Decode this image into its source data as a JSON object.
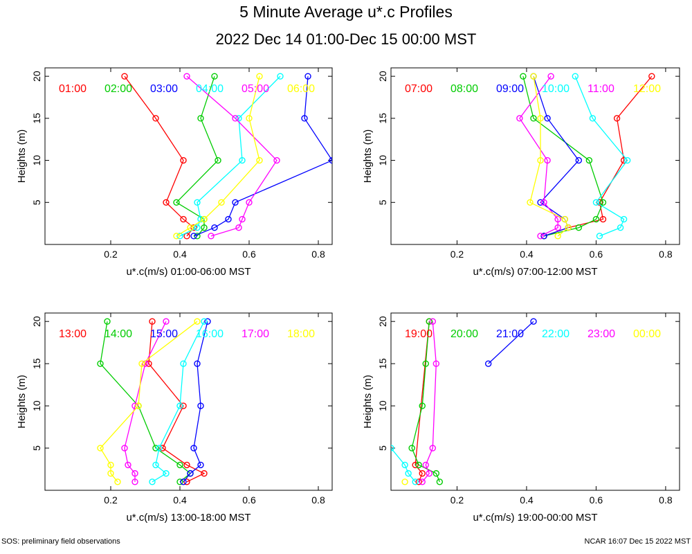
{
  "title": "5 Minute Average u*.c Profiles",
  "subtitle": "2022 Dec 14 01:00-Dec 15 00:00 MST",
  "footer": {
    "left": "SOS: preliminary field observations",
    "right": "NCAR 16:07 Dec 15 2022 MST"
  },
  "colors": {
    "red": "#ff0000",
    "green": "#00cc00",
    "blue": "#0000ff",
    "cyan": "#00ffff",
    "magenta": "#ff00ff",
    "yellow": "#ffff00"
  },
  "chart_data": [
    {
      "type": "line",
      "xlabel": "u*.c(m/s) 01:00-06:00 MST",
      "ylabel": "Heights (m)",
      "xlim": [
        0.01,
        0.84
      ],
      "ylim": [
        0,
        21
      ],
      "xticks": [
        0.2,
        0.4,
        0.6,
        0.8
      ],
      "yticks": [
        5,
        10,
        15,
        20
      ],
      "legend_placement": "top",
      "series": [
        {
          "name": "01:00",
          "color": "#ff0000",
          "points": [
            [
              0.42,
              1
            ],
            [
              0.44,
              2
            ],
            [
              0.41,
              3
            ],
            [
              0.36,
              5
            ],
            [
              0.41,
              10
            ],
            [
              0.33,
              15
            ],
            [
              0.24,
              20
            ]
          ]
        },
        {
          "name": "02:00",
          "color": "#00cc00",
          "points": [
            [
              0.45,
              1
            ],
            [
              0.47,
              2
            ],
            [
              0.47,
              3
            ],
            [
              0.39,
              5
            ],
            [
              0.51,
              10
            ],
            [
              0.46,
              15
            ],
            [
              0.5,
              20
            ]
          ]
        },
        {
          "name": "03:00",
          "color": "#0000ff",
          "points": [
            [
              0.44,
              1
            ],
            [
              0.5,
              2
            ],
            [
              0.54,
              3
            ],
            [
              0.56,
              5
            ],
            [
              0.84,
              10
            ],
            [
              0.76,
              15
            ],
            [
              0.77,
              20
            ]
          ]
        },
        {
          "name": "04:00",
          "color": "#00ffff",
          "points": [
            [
              0.4,
              1
            ],
            [
              0.45,
              2
            ],
            [
              0.46,
              3
            ],
            [
              0.45,
              5
            ],
            [
              0.58,
              10
            ],
            [
              0.57,
              15
            ],
            [
              0.69,
              20
            ]
          ]
        },
        {
          "name": "05:00",
          "color": "#ff00ff",
          "points": [
            [
              0.49,
              1
            ],
            [
              0.57,
              2
            ],
            [
              0.58,
              3
            ],
            [
              0.6,
              5
            ],
            [
              0.68,
              10
            ],
            [
              0.56,
              15
            ],
            [
              0.42,
              20
            ]
          ]
        },
        {
          "name": "06:00",
          "color": "#ffff00",
          "points": [
            [
              0.39,
              1
            ],
            [
              0.43,
              2
            ],
            [
              0.47,
              3
            ],
            [
              0.52,
              5
            ],
            [
              0.63,
              10
            ],
            [
              0.6,
              15
            ],
            [
              0.63,
              20
            ]
          ]
        }
      ]
    },
    {
      "type": "line",
      "xlabel": "u*.c(m/s) 07:00-12:00 MST",
      "ylabel": "Heights (m)",
      "xlim": [
        0.01,
        0.84
      ],
      "ylim": [
        0,
        21
      ],
      "xticks": [
        0.2,
        0.4,
        0.6,
        0.8
      ],
      "yticks": [
        5,
        10,
        15,
        20
      ],
      "legend_placement": "top",
      "series": [
        {
          "name": "07:00",
          "color": "#ff0000",
          "points": [
            [
              0.45,
              1
            ],
            [
              0.52,
              2
            ],
            [
              0.62,
              3
            ],
            [
              0.61,
              5
            ],
            [
              0.68,
              10
            ],
            [
              0.66,
              15
            ],
            [
              0.76,
              20
            ]
          ]
        },
        {
          "name": "08:00",
          "color": "#00cc00",
          "points": [
            [
              0.45,
              1
            ],
            [
              0.55,
              2
            ],
            [
              0.6,
              3
            ],
            [
              0.62,
              5
            ],
            [
              0.58,
              10
            ],
            [
              0.42,
              15
            ],
            [
              0.39,
              20
            ]
          ]
        },
        {
          "name": "09:00",
          "color": "#0000ff",
          "points": [
            [
              0.45,
              1
            ],
            [
              0.52,
              2
            ],
            [
              0.51,
              3
            ],
            [
              0.44,
              5
            ],
            [
              0.55,
              10
            ],
            [
              0.46,
              15
            ],
            [
              0.42,
              20
            ]
          ]
        },
        {
          "name": "10:00",
          "color": "#00ffff",
          "points": [
            [
              0.61,
              1
            ],
            [
              0.67,
              2
            ],
            [
              0.68,
              3
            ],
            [
              0.6,
              5
            ],
            [
              0.69,
              10
            ],
            [
              0.59,
              15
            ],
            [
              0.54,
              20
            ]
          ]
        },
        {
          "name": "11:00",
          "color": "#ff00ff",
          "points": [
            [
              0.44,
              1
            ],
            [
              0.49,
              2
            ],
            [
              0.49,
              3
            ],
            [
              0.45,
              5
            ],
            [
              0.46,
              10
            ],
            [
              0.38,
              15
            ],
            [
              0.47,
              20
            ]
          ]
        },
        {
          "name": "12:00",
          "color": "#ffff00",
          "points": [
            [
              0.49,
              1
            ],
            [
              0.52,
              2
            ],
            [
              0.51,
              3
            ],
            [
              0.41,
              5
            ],
            [
              0.44,
              10
            ],
            [
              0.44,
              15
            ],
            [
              0.42,
              20
            ]
          ]
        }
      ]
    },
    {
      "type": "line",
      "xlabel": "u*.c(m/s) 13:00-18:00 MST",
      "ylabel": "Heights (m)",
      "xlim": [
        0.01,
        0.84
      ],
      "ylim": [
        0,
        21
      ],
      "xticks": [
        0.2,
        0.4,
        0.6,
        0.8
      ],
      "yticks": [
        5,
        10,
        15,
        20
      ],
      "legend_placement": "top",
      "series": [
        {
          "name": "13:00",
          "color": "#ff0000",
          "points": [
            [
              0.42,
              1
            ],
            [
              0.47,
              2
            ],
            [
              0.42,
              3
            ],
            [
              0.35,
              5
            ],
            [
              0.41,
              10
            ],
            [
              0.31,
              15
            ],
            [
              0.32,
              20
            ]
          ]
        },
        {
          "name": "14:00",
          "color": "#00cc00",
          "points": [
            [
              0.4,
              1
            ],
            [
              0.43,
              2
            ],
            [
              0.4,
              3
            ],
            [
              0.33,
              5
            ],
            [
              0.28,
              10
            ],
            [
              0.17,
              15
            ],
            [
              0.19,
              20
            ]
          ]
        },
        {
          "name": "15:00",
          "color": "#0000ff",
          "points": [
            [
              0.41,
              1
            ],
            [
              0.43,
              2
            ],
            [
              0.46,
              3
            ],
            [
              0.44,
              5
            ],
            [
              0.46,
              10
            ],
            [
              0.45,
              15
            ],
            [
              0.48,
              20
            ]
          ]
        },
        {
          "name": "16:00",
          "color": "#00ffff",
          "points": [
            [
              0.32,
              1
            ],
            [
              0.36,
              2
            ],
            [
              0.33,
              3
            ],
            [
              0.34,
              5
            ],
            [
              0.4,
              10
            ],
            [
              0.41,
              15
            ],
            [
              0.47,
              20
            ]
          ]
        },
        {
          "name": "17:00",
          "color": "#ff00ff",
          "points": [
            [
              0.27,
              1
            ],
            [
              0.27,
              2
            ],
            [
              0.25,
              3
            ],
            [
              0.24,
              5
            ],
            [
              0.27,
              10
            ],
            [
              0.3,
              15
            ],
            [
              0.36,
              20
            ]
          ]
        },
        {
          "name": "18:00",
          "color": "#ffff00",
          "points": [
            [
              0.22,
              1
            ],
            [
              0.2,
              2
            ],
            [
              0.2,
              3
            ],
            [
              0.17,
              5
            ],
            [
              0.28,
              10
            ],
            [
              0.29,
              15
            ],
            [
              0.45,
              20
            ]
          ]
        }
      ]
    },
    {
      "type": "line",
      "xlabel": "u*.c(m/s) 19:00-00:00 MST",
      "ylabel": "Heights (m)",
      "xlim": [
        0.01,
        0.84
      ],
      "ylim": [
        0,
        21
      ],
      "xticks": [
        0.2,
        0.4,
        0.6,
        0.8
      ],
      "yticks": [
        5,
        10,
        15,
        20
      ],
      "legend_placement": "top",
      "series": [
        {
          "name": "19:00",
          "color": "#ff0000",
          "points": [
            [
              0.09,
              1
            ],
            [
              0.1,
              2
            ],
            [
              0.08,
              3
            ],
            [
              0.12,
              20
            ]
          ]
        },
        {
          "name": "20:00",
          "color": "#00cc00",
          "points": [
            [
              0.15,
              1
            ],
            [
              0.14,
              2
            ],
            [
              0.09,
              3
            ],
            [
              0.07,
              5
            ],
            [
              0.1,
              10
            ],
            [
              0.11,
              15
            ],
            [
              0.12,
              20
            ]
          ]
        },
        {
          "name": "21:00",
          "color": "#0000ff",
          "points": [
            [
              0.29,
              15
            ],
            [
              0.42,
              20
            ]
          ]
        },
        {
          "name": "22:00",
          "color": "#00ffff",
          "points": [
            [
              0.08,
              1
            ],
            [
              0.06,
              2
            ],
            [
              0.05,
              3
            ],
            [
              0.01,
              5
            ]
          ]
        },
        {
          "name": "23:00",
          "color": "#ff00ff",
          "points": [
            [
              0.1,
              1
            ],
            [
              0.12,
              2
            ],
            [
              0.11,
              3
            ],
            [
              0.13,
              5
            ],
            [
              0.14,
              15
            ],
            [
              0.13,
              20
            ]
          ]
        },
        {
          "name": "00:00",
          "color": "#ffff00",
          "points": [
            [
              0.05,
              1
            ]
          ]
        }
      ]
    }
  ]
}
